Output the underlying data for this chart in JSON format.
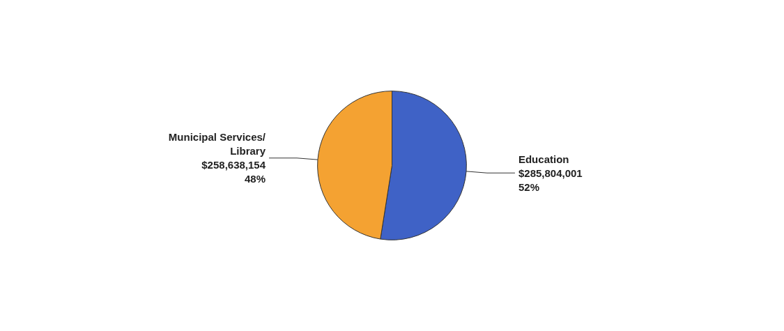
{
  "chart_data": {
    "type": "pie",
    "categories": [
      "Education",
      "Municipal Services/Library"
    ],
    "values": [
      285804001,
      258638154
    ],
    "colors": [
      "#3f62c6",
      "#f4a232"
    ],
    "value_labels": [
      "$285,804,001\n52%",
      "$258,638,154\n48%"
    ]
  }
}
